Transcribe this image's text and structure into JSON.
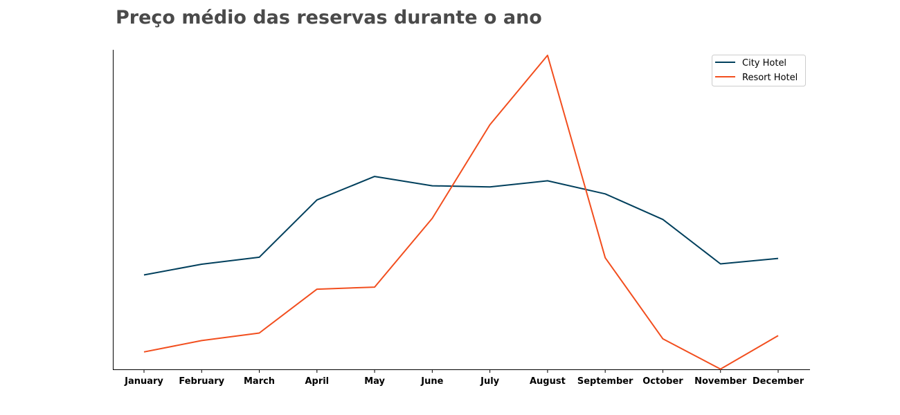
{
  "chart_data": {
    "type": "line",
    "title": "Preço médio das reservas durante o ano",
    "xlabel": "",
    "ylabel": "",
    "categories": [
      "January",
      "February",
      "March",
      "April",
      "May",
      "June",
      "July",
      "August",
      "September",
      "October",
      "November",
      "December"
    ],
    "series": [
      {
        "name": "City Hotel",
        "color": "#003f5c",
        "values": [
          82.5,
          86.2,
          88.6,
          108.3,
          116.4,
          113.2,
          112.8,
          114.9,
          110.4,
          101.6,
          86.3,
          88.2
        ]
      },
      {
        "name": "Resort Hotel",
        "color": "#f24e1e",
        "values": [
          56.0,
          59.9,
          62.5,
          77.6,
          78.3,
          102.0,
          134.2,
          158.1,
          88.4,
          60.5,
          50.1,
          61.6
        ]
      }
    ],
    "ylim": [
      50.0,
      160.0
    ],
    "y_axis_visible": false,
    "grid": false,
    "legend_position": "top-right"
  }
}
